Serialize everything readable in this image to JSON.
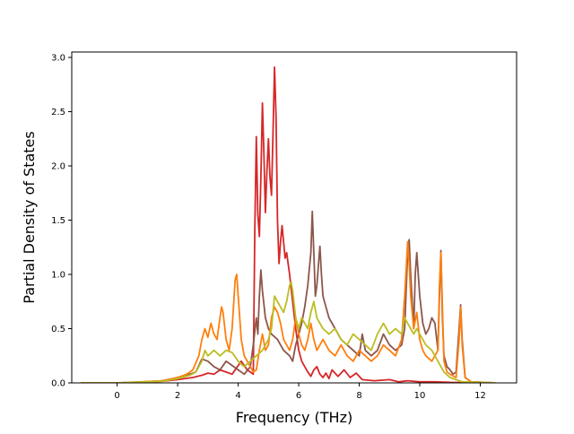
{
  "chart_data": {
    "type": "line",
    "title": "",
    "xlabel": "Frequency (THz)",
    "ylabel": "Partial Density of States",
    "xlim": [
      -1.5,
      13.2
    ],
    "ylim": [
      0,
      3.05
    ],
    "xticks": [
      0,
      2,
      4,
      6,
      8,
      10,
      12
    ],
    "yticks": [
      0.0,
      0.5,
      1.0,
      1.5,
      2.0,
      2.5,
      3.0
    ],
    "xtick_labels": [
      "0",
      "2",
      "4",
      "6",
      "8",
      "10",
      "12"
    ],
    "ytick_labels": [
      "0.0",
      "0.5",
      "1.0",
      "1.5",
      "2.0",
      "2.5",
      "3.0"
    ],
    "grid": false,
    "legend": "none",
    "series": [
      {
        "color": "#d62728",
        "points": [
          [
            -1.2,
            0
          ],
          [
            0,
            0
          ],
          [
            0.8,
            0.005
          ],
          [
            1.5,
            0.015
          ],
          [
            2.0,
            0.03
          ],
          [
            2.5,
            0.05
          ],
          [
            2.8,
            0.07
          ],
          [
            3.0,
            0.09
          ],
          [
            3.2,
            0.08
          ],
          [
            3.4,
            0.12
          ],
          [
            3.6,
            0.1
          ],
          [
            3.8,
            0.08
          ],
          [
            4.0,
            0.16
          ],
          [
            4.1,
            0.2
          ],
          [
            4.3,
            0.12
          ],
          [
            4.5,
            0.08
          ],
          [
            4.55,
            1.4
          ],
          [
            4.6,
            2.27
          ],
          [
            4.65,
            1.55
          ],
          [
            4.7,
            1.35
          ],
          [
            4.75,
            1.9
          ],
          [
            4.8,
            2.58
          ],
          [
            4.85,
            2.1
          ],
          [
            4.9,
            1.57
          ],
          [
            4.95,
            1.95
          ],
          [
            5.0,
            2.25
          ],
          [
            5.05,
            1.9
          ],
          [
            5.1,
            1.73
          ],
          [
            5.15,
            2.3
          ],
          [
            5.2,
            2.91
          ],
          [
            5.25,
            2.45
          ],
          [
            5.3,
            1.5
          ],
          [
            5.35,
            1.1
          ],
          [
            5.4,
            1.3
          ],
          [
            5.45,
            1.45
          ],
          [
            5.5,
            1.3
          ],
          [
            5.55,
            1.15
          ],
          [
            5.6,
            1.2
          ],
          [
            5.7,
            1.0
          ],
          [
            5.8,
            0.75
          ],
          [
            5.9,
            0.5
          ],
          [
            6.0,
            0.3
          ],
          [
            6.1,
            0.2
          ],
          [
            6.2,
            0.15
          ],
          [
            6.3,
            0.1
          ],
          [
            6.4,
            0.06
          ],
          [
            6.5,
            0.12
          ],
          [
            6.6,
            0.15
          ],
          [
            6.7,
            0.08
          ],
          [
            6.8,
            0.05
          ],
          [
            6.9,
            0.09
          ],
          [
            7.0,
            0.04
          ],
          [
            7.1,
            0.12
          ],
          [
            7.3,
            0.06
          ],
          [
            7.5,
            0.12
          ],
          [
            7.7,
            0.05
          ],
          [
            7.9,
            0.09
          ],
          [
            8.1,
            0.03
          ],
          [
            8.5,
            0.02
          ],
          [
            9.0,
            0.03
          ],
          [
            9.3,
            0.01
          ],
          [
            9.6,
            0.02
          ],
          [
            10.0,
            0.01
          ],
          [
            10.5,
            0.01
          ],
          [
            11.0,
            0.005
          ],
          [
            12.5,
            0
          ]
        ]
      },
      {
        "color": "#8c564b",
        "points": [
          [
            -1.2,
            0
          ],
          [
            0,
            0
          ],
          [
            0.8,
            0.008
          ],
          [
            1.5,
            0.02
          ],
          [
            2.0,
            0.05
          ],
          [
            2.4,
            0.08
          ],
          [
            2.6,
            0.1
          ],
          [
            2.8,
            0.22
          ],
          [
            3.0,
            0.2
          ],
          [
            3.2,
            0.15
          ],
          [
            3.4,
            0.12
          ],
          [
            3.6,
            0.2
          ],
          [
            3.8,
            0.16
          ],
          [
            4.0,
            0.12
          ],
          [
            4.2,
            0.08
          ],
          [
            4.4,
            0.15
          ],
          [
            4.5,
            0.35
          ],
          [
            4.6,
            0.6
          ],
          [
            4.65,
            0.45
          ],
          [
            4.7,
            0.8
          ],
          [
            4.75,
            1.04
          ],
          [
            4.8,
            0.85
          ],
          [
            4.9,
            0.6
          ],
          [
            5.0,
            0.5
          ],
          [
            5.1,
            0.45
          ],
          [
            5.3,
            0.4
          ],
          [
            5.5,
            0.3
          ],
          [
            5.7,
            0.25
          ],
          [
            5.8,
            0.2
          ],
          [
            5.9,
            0.35
          ],
          [
            6.0,
            0.45
          ],
          [
            6.1,
            0.55
          ],
          [
            6.2,
            0.7
          ],
          [
            6.3,
            0.9
          ],
          [
            6.4,
            1.2
          ],
          [
            6.45,
            1.58
          ],
          [
            6.5,
            1.2
          ],
          [
            6.55,
            0.8
          ],
          [
            6.6,
            0.9
          ],
          [
            6.7,
            1.26
          ],
          [
            6.75,
            1.0
          ],
          [
            6.8,
            0.8
          ],
          [
            6.9,
            0.7
          ],
          [
            7.0,
            0.6
          ],
          [
            7.2,
            0.5
          ],
          [
            7.4,
            0.4
          ],
          [
            7.6,
            0.35
          ],
          [
            7.8,
            0.3
          ],
          [
            8.0,
            0.25
          ],
          [
            8.1,
            0.45
          ],
          [
            8.2,
            0.3
          ],
          [
            8.4,
            0.25
          ],
          [
            8.6,
            0.3
          ],
          [
            8.8,
            0.45
          ],
          [
            9.0,
            0.35
          ],
          [
            9.2,
            0.3
          ],
          [
            9.4,
            0.35
          ],
          [
            9.5,
            0.5
          ],
          [
            9.6,
            1.2
          ],
          [
            9.65,
            1.32
          ],
          [
            9.7,
            1.0
          ],
          [
            9.8,
            0.5
          ],
          [
            9.85,
            1.0
          ],
          [
            9.9,
            1.2
          ],
          [
            10.0,
            0.8
          ],
          [
            10.1,
            0.55
          ],
          [
            10.2,
            0.45
          ],
          [
            10.3,
            0.5
          ],
          [
            10.4,
            0.6
          ],
          [
            10.5,
            0.55
          ],
          [
            10.6,
            0.3
          ],
          [
            10.65,
            0.8
          ],
          [
            10.7,
            1.22
          ],
          [
            10.75,
            0.6
          ],
          [
            10.8,
            0.25
          ],
          [
            10.9,
            0.15
          ],
          [
            11.0,
            0.12
          ],
          [
            11.1,
            0.08
          ],
          [
            11.2,
            0.1
          ],
          [
            11.3,
            0.5
          ],
          [
            11.35,
            0.72
          ],
          [
            11.4,
            0.4
          ],
          [
            11.5,
            0.05
          ],
          [
            11.7,
            0.01
          ],
          [
            12.5,
            0
          ]
        ]
      },
      {
        "color": "#ff7f0e",
        "points": [
          [
            -1.2,
            0
          ],
          [
            0,
            0
          ],
          [
            0.8,
            0.01
          ],
          [
            1.5,
            0.02
          ],
          [
            2.0,
            0.05
          ],
          [
            2.3,
            0.08
          ],
          [
            2.5,
            0.12
          ],
          [
            2.7,
            0.25
          ],
          [
            2.8,
            0.4
          ],
          [
            2.9,
            0.5
          ],
          [
            3.0,
            0.42
          ],
          [
            3.1,
            0.55
          ],
          [
            3.2,
            0.45
          ],
          [
            3.3,
            0.4
          ],
          [
            3.4,
            0.6
          ],
          [
            3.45,
            0.7
          ],
          [
            3.5,
            0.65
          ],
          [
            3.6,
            0.4
          ],
          [
            3.7,
            0.3
          ],
          [
            3.8,
            0.5
          ],
          [
            3.9,
            0.95
          ],
          [
            3.95,
            1.0
          ],
          [
            4.0,
            0.8
          ],
          [
            4.1,
            0.4
          ],
          [
            4.2,
            0.25
          ],
          [
            4.3,
            0.2
          ],
          [
            4.4,
            0.15
          ],
          [
            4.5,
            0.1
          ],
          [
            4.6,
            0.12
          ],
          [
            4.7,
            0.3
          ],
          [
            4.8,
            0.45
          ],
          [
            4.9,
            0.3
          ],
          [
            5.0,
            0.35
          ],
          [
            5.1,
            0.6
          ],
          [
            5.2,
            0.7
          ],
          [
            5.3,
            0.65
          ],
          [
            5.4,
            0.55
          ],
          [
            5.5,
            0.4
          ],
          [
            5.6,
            0.35
          ],
          [
            5.7,
            0.3
          ],
          [
            5.8,
            0.4
          ],
          [
            5.9,
            0.6
          ],
          [
            6.0,
            0.45
          ],
          [
            6.1,
            0.35
          ],
          [
            6.2,
            0.3
          ],
          [
            6.3,
            0.4
          ],
          [
            6.4,
            0.55
          ],
          [
            6.5,
            0.4
          ],
          [
            6.6,
            0.3
          ],
          [
            6.7,
            0.35
          ],
          [
            6.8,
            0.4
          ],
          [
            7.0,
            0.3
          ],
          [
            7.2,
            0.25
          ],
          [
            7.4,
            0.35
          ],
          [
            7.6,
            0.25
          ],
          [
            7.8,
            0.2
          ],
          [
            8.0,
            0.3
          ],
          [
            8.2,
            0.25
          ],
          [
            8.4,
            0.2
          ],
          [
            8.6,
            0.25
          ],
          [
            8.8,
            0.35
          ],
          [
            9.0,
            0.3
          ],
          [
            9.2,
            0.25
          ],
          [
            9.4,
            0.4
          ],
          [
            9.5,
            0.8
          ],
          [
            9.6,
            1.3
          ],
          [
            9.65,
            1.1
          ],
          [
            9.7,
            0.8
          ],
          [
            9.8,
            0.5
          ],
          [
            9.9,
            0.65
          ],
          [
            10.0,
            0.4
          ],
          [
            10.1,
            0.3
          ],
          [
            10.2,
            0.25
          ],
          [
            10.4,
            0.2
          ],
          [
            10.6,
            0.3
          ],
          [
            10.65,
            0.9
          ],
          [
            10.7,
            1.2
          ],
          [
            10.75,
            0.7
          ],
          [
            10.8,
            0.2
          ],
          [
            10.9,
            0.1
          ],
          [
            11.0,
            0.08
          ],
          [
            11.2,
            0.05
          ],
          [
            11.3,
            0.4
          ],
          [
            11.35,
            0.7
          ],
          [
            11.4,
            0.35
          ],
          [
            11.5,
            0.05
          ],
          [
            11.7,
            0.01
          ],
          [
            12.5,
            0
          ]
        ]
      },
      {
        "color": "#bcbd22",
        "points": [
          [
            -1.2,
            0
          ],
          [
            0,
            0
          ],
          [
            0.8,
            0.008
          ],
          [
            1.5,
            0.015
          ],
          [
            2.0,
            0.04
          ],
          [
            2.4,
            0.07
          ],
          [
            2.6,
            0.1
          ],
          [
            2.8,
            0.2
          ],
          [
            2.9,
            0.3
          ],
          [
            3.0,
            0.25
          ],
          [
            3.2,
            0.3
          ],
          [
            3.4,
            0.25
          ],
          [
            3.6,
            0.3
          ],
          [
            3.8,
            0.28
          ],
          [
            4.0,
            0.2
          ],
          [
            4.2,
            0.15
          ],
          [
            4.4,
            0.2
          ],
          [
            4.6,
            0.25
          ],
          [
            4.8,
            0.3
          ],
          [
            5.0,
            0.4
          ],
          [
            5.1,
            0.5
          ],
          [
            5.2,
            0.8
          ],
          [
            5.3,
            0.75
          ],
          [
            5.4,
            0.7
          ],
          [
            5.5,
            0.65
          ],
          [
            5.6,
            0.75
          ],
          [
            5.7,
            0.9
          ],
          [
            5.75,
            0.93
          ],
          [
            5.8,
            0.85
          ],
          [
            5.9,
            0.6
          ],
          [
            6.0,
            0.5
          ],
          [
            6.1,
            0.6
          ],
          [
            6.2,
            0.55
          ],
          [
            6.3,
            0.5
          ],
          [
            6.4,
            0.65
          ],
          [
            6.5,
            0.75
          ],
          [
            6.6,
            0.6
          ],
          [
            6.7,
            0.55
          ],
          [
            6.8,
            0.5
          ],
          [
            7.0,
            0.45
          ],
          [
            7.2,
            0.5
          ],
          [
            7.4,
            0.4
          ],
          [
            7.6,
            0.35
          ],
          [
            7.8,
            0.45
          ],
          [
            8.0,
            0.4
          ],
          [
            8.2,
            0.35
          ],
          [
            8.4,
            0.3
          ],
          [
            8.6,
            0.45
          ],
          [
            8.8,
            0.55
          ],
          [
            9.0,
            0.45
          ],
          [
            9.2,
            0.5
          ],
          [
            9.4,
            0.45
          ],
          [
            9.5,
            0.6
          ],
          [
            9.6,
            0.55
          ],
          [
            9.7,
            0.5
          ],
          [
            9.8,
            0.45
          ],
          [
            9.9,
            0.5
          ],
          [
            10.0,
            0.45
          ],
          [
            10.2,
            0.35
          ],
          [
            10.4,
            0.3
          ],
          [
            10.6,
            0.2
          ],
          [
            10.8,
            0.1
          ],
          [
            11.0,
            0.05
          ],
          [
            11.2,
            0.03
          ],
          [
            11.4,
            0.01
          ],
          [
            12.5,
            0
          ]
        ]
      }
    ]
  }
}
